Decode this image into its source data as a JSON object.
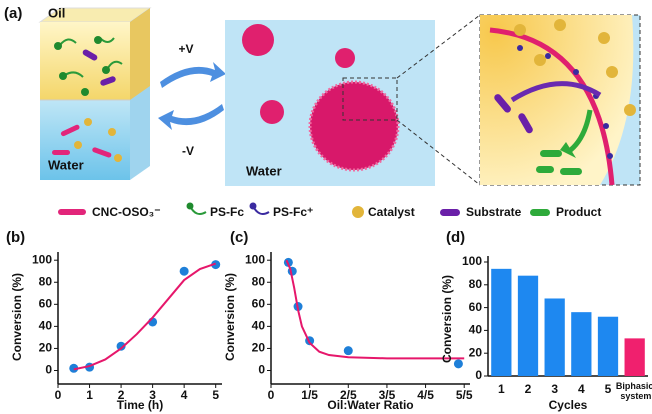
{
  "panel_a": {
    "label": "(a)",
    "oil": "Oil",
    "water_left": "Water",
    "plus_v": "+V",
    "minus_v": "-V",
    "water_middle": "Water"
  },
  "legend": [
    "CNC-OSO₃⁻",
    "PS-Fc",
    "PS-Fc⁺",
    "Catalyst",
    "Substrate",
    "Product"
  ],
  "chart_data": [
    {
      "type": "scatter",
      "label": "(b)",
      "xlabel": "Time (h)",
      "ylabel": "Conversion (%)",
      "xlim": [
        0,
        5.2
      ],
      "ylim": [
        -5,
        102
      ],
      "xticks": [
        0,
        1,
        2,
        3,
        4,
        5
      ],
      "yticks": [
        0,
        20,
        40,
        60,
        80,
        100
      ],
      "series": [
        {
          "color": "#1e7fd8",
          "x": [
            0.5,
            1,
            2,
            3,
            4,
            5
          ],
          "values": [
            2,
            3,
            22,
            44,
            90,
            96
          ]
        },
        {
          "color": "#e6176b",
          "line": true,
          "x": [
            0.5,
            1,
            1.5,
            2,
            2.5,
            3,
            3.5,
            4,
            4.5,
            5
          ],
          "values": [
            1,
            4,
            10,
            20,
            33,
            48,
            65,
            82,
            92,
            97
          ]
        }
      ]
    },
    {
      "type": "scatter",
      "label": "(c)",
      "xlabel": "Oil:Water Ratio",
      "ylabel": "Conversion (%)",
      "xlim": [
        0,
        1.03
      ],
      "ylim": [
        -5,
        102
      ],
      "xticks": [
        0,
        {
          "value": 0.2,
          "label": "1/5"
        },
        {
          "value": 0.4,
          "label": "2/5"
        },
        {
          "value": 0.6,
          "label": "3/5"
        },
        {
          "value": 0.8,
          "label": "4/5"
        },
        {
          "value": 1,
          "label": "5/5"
        }
      ],
      "yticks": [
        0,
        20,
        40,
        60,
        80,
        100
      ],
      "series": [
        {
          "color": "#1e7fd8",
          "x": [
            0.09,
            0.11,
            0.14,
            0.2,
            0.4,
            0.97
          ],
          "values": [
            98,
            90,
            58,
            27,
            18,
            6
          ]
        },
        {
          "color": "#e6176b",
          "line": true,
          "x": [
            0.08,
            0.1,
            0.12,
            0.14,
            0.16,
            0.2,
            0.25,
            0.3,
            0.4,
            0.6,
            0.8,
            1
          ],
          "values": [
            100,
            92,
            75,
            55,
            40,
            25,
            17,
            14,
            12,
            11,
            11,
            11
          ]
        }
      ]
    },
    {
      "type": "bar",
      "label": "(d)",
      "xlabel": "Cycles",
      "ylabel": "Conversion (%)",
      "ylim": [
        0,
        100
      ],
      "yticks": [
        0,
        20,
        40,
        60,
        80,
        100
      ],
      "categories": [
        "1",
        "2",
        "3",
        "4",
        "5",
        "Biphasic system"
      ],
      "values": [
        94,
        88,
        68,
        56,
        52,
        33
      ],
      "colors": [
        "#1e88f0",
        "#1e88f0",
        "#1e88f0",
        "#1e88f0",
        "#1e88f0",
        "#f0206e"
      ]
    }
  ]
}
